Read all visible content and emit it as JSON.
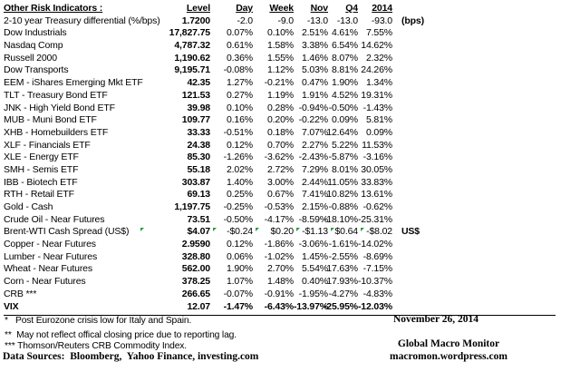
{
  "table": {
    "title": "Other Risk Indicators :",
    "columns": [
      "Level",
      "Day",
      "Week",
      "Nov",
      "Q4",
      "2014"
    ],
    "rows": [
      {
        "label": "2-10 year Treasury differential (%/bps)",
        "level": "1.7200",
        "day": "-2.0",
        "week": "-9.0",
        "nov": "-13.0",
        "q4": "-13.0",
        "y2014": "-93.0",
        "note": "(bps)",
        "bold": false,
        "markers": false
      },
      {
        "label": "Dow Industrials",
        "level": "17,827.75",
        "day": "0.07%",
        "week": "0.10%",
        "nov": "2.51%",
        "q4": "4.61%",
        "y2014": "7.55%",
        "note": "",
        "bold": false,
        "markers": false
      },
      {
        "label": "Nasdaq Comp",
        "level": "4,787.32",
        "day": "0.61%",
        "week": "1.58%",
        "nov": "3.38%",
        "q4": "6.54%",
        "y2014": "14.62%",
        "note": "",
        "bold": false,
        "markers": false
      },
      {
        "label": "Russell 2000",
        "level": "1,190.62",
        "day": "0.36%",
        "week": "1.55%",
        "nov": "1.46%",
        "q4": "8.07%",
        "y2014": "2.32%",
        "note": "",
        "bold": false,
        "markers": false
      },
      {
        "label": "Dow Transports",
        "level": "9,195.71",
        "day": "-0.08%",
        "week": "1.12%",
        "nov": "5.03%",
        "q4": "8.81%",
        "y2014": "24.26%",
        "note": "",
        "bold": false,
        "markers": false
      },
      {
        "label": "EEM - iShares Emerging Mkt ETF",
        "level": "42.35",
        "day": "1.27%",
        "week": "-0.21%",
        "nov": "0.47%",
        "q4": "1.90%",
        "y2014": "1.34%",
        "note": "",
        "bold": false,
        "markers": false
      },
      {
        "label": "TLT - Treasury Bond ETF",
        "level": "121.53",
        "day": "0.27%",
        "week": "1.19%",
        "nov": "1.91%",
        "q4": "4.52%",
        "y2014": "19.31%",
        "note": "",
        "bold": false,
        "markers": false
      },
      {
        "label": "JNK - High Yield Bond ETF",
        "level": "39.98",
        "day": "0.10%",
        "week": "0.28%",
        "nov": "-0.94%",
        "q4": "-0.50%",
        "y2014": "-1.43%",
        "note": "",
        "bold": false,
        "markers": false
      },
      {
        "label": "MUB - Muni Bond ETF",
        "level": "109.77",
        "day": "0.16%",
        "week": "0.20%",
        "nov": "-0.22%",
        "q4": "0.09%",
        "y2014": "5.81%",
        "note": "",
        "bold": false,
        "markers": false
      },
      {
        "label": "XHB - Homebuilders ETF",
        "level": "33.33",
        "day": "-0.51%",
        "week": "0.18%",
        "nov": "7.07%",
        "q4": "12.64%",
        "y2014": "0.09%",
        "note": "",
        "bold": false,
        "markers": false
      },
      {
        "label": "XLF - Financials ETF",
        "level": "24.38",
        "day": "0.12%",
        "week": "0.70%",
        "nov": "2.27%",
        "q4": "5.22%",
        "y2014": "11.53%",
        "note": "",
        "bold": false,
        "markers": false
      },
      {
        "label": "XLE - Energy ETF",
        "level": "85.30",
        "day": "-1.26%",
        "week": "-3.62%",
        "nov": "-2.43%",
        "q4": "-5.87%",
        "y2014": "-3.16%",
        "note": "",
        "bold": false,
        "markers": false
      },
      {
        "label": "SMH - Semis ETF",
        "level": "55.18",
        "day": "2.02%",
        "week": "2.72%",
        "nov": "7.29%",
        "q4": "8.01%",
        "y2014": "30.05%",
        "note": "",
        "bold": false,
        "markers": false
      },
      {
        "label": "IBB - Biotech ETF",
        "level": "303.87",
        "day": "1.40%",
        "week": "3.00%",
        "nov": "2.44%",
        "q4": "11.05%",
        "y2014": "33.83%",
        "note": "",
        "bold": false,
        "markers": false
      },
      {
        "label": "RTH - Retail ETF",
        "level": "69.13",
        "day": "0.25%",
        "week": "0.67%",
        "nov": "7.41%",
        "q4": "10.82%",
        "y2014": "13.61%",
        "note": "",
        "bold": false,
        "markers": false
      },
      {
        "label": "Gold - Cash",
        "level": "1,197.75",
        "day": "-0.25%",
        "week": "-0.53%",
        "nov": "2.15%",
        "q4": "-0.88%",
        "y2014": "-0.62%",
        "note": "",
        "bold": false,
        "markers": false
      },
      {
        "label": "Crude Oil - Near Futures",
        "level": "73.51",
        "day": "-0.50%",
        "week": "-4.17%",
        "nov": "-8.59%",
        "q4": "-18.10%",
        "y2014": "-25.31%",
        "note": "",
        "bold": false,
        "markers": false
      },
      {
        "label": "Brent-WTI Cash Spread (US$)",
        "level": "$4.07",
        "day": "-$0.24",
        "week": "$0.20",
        "nov": "-$1.13",
        "q4": "$0.64",
        "y2014": "-$8.02",
        "note": "US$",
        "bold": false,
        "markers": true
      },
      {
        "label": "Copper - Near Futures",
        "level": "2.9590",
        "day": "0.12%",
        "week": "-1.86%",
        "nov": "-3.06%",
        "q4": "-1.61%",
        "y2014": "-14.02%",
        "note": "",
        "bold": false,
        "markers": false
      },
      {
        "label": "Lumber - Near Futures",
        "level": "328.80",
        "day": "0.06%",
        "week": "-1.02%",
        "nov": "1.45%",
        "q4": "-2.55%",
        "y2014": "-8.69%",
        "note": "",
        "bold": false,
        "markers": false
      },
      {
        "label": "Wheat - Near Futures",
        "level": "562.00",
        "day": "1.90%",
        "week": "2.70%",
        "nov": "5.54%",
        "q4": "17.63%",
        "y2014": "-7.15%",
        "note": "",
        "bold": false,
        "markers": false
      },
      {
        "label": "Corn - Near Futures",
        "level": "378.25",
        "day": "1.07%",
        "week": "1.48%",
        "nov": "0.40%",
        "q4": "17.93%",
        "y2014": "-10.37%",
        "note": "",
        "bold": false,
        "markers": false
      },
      {
        "label": "CRB ***",
        "level": "266.65",
        "day": "-0.07%",
        "week": "-0.91%",
        "nov": "-1.95%",
        "q4": "-4.27%",
        "y2014": "-4.83%",
        "note": "",
        "bold": false,
        "markers": false
      },
      {
        "label": "VIX",
        "level": "12.07",
        "day": "-1.47%",
        "week": "-6.43%",
        "nov": "-13.97%",
        "q4": "-25.95%",
        "y2014": "-12.03%",
        "note": "",
        "bold": true,
        "markers": false
      }
    ]
  },
  "footnotes": [
    "*   Post Eurozone crisis low for Italy and Spain.",
    "**  May not reflect offical closing price due to reporting lag.",
    "*** Thomson/Reuters CRB Commodity Index."
  ],
  "data_sources": "Data Sources:  Bloomberg,  Yahoo Finance, investing.com",
  "date": "November 26, 2014",
  "brand": {
    "name": "Global Macro Monitor",
    "url": "macromon.wordpress.com"
  },
  "colors": {
    "marker_green": "#21a038",
    "text": "#000000"
  }
}
